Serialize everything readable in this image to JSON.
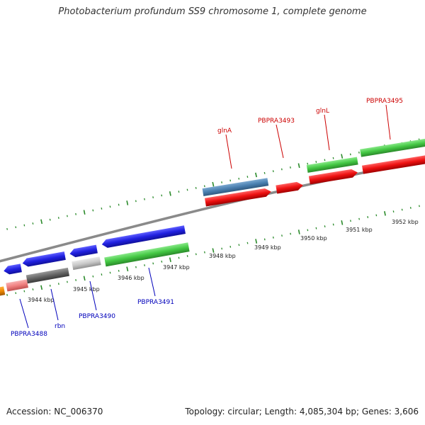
{
  "title": "Photobacterium profundum SS9 chromosome 1, complete genome",
  "footer": {
    "accession": "Accession: NC_006370",
    "summary": "Topology: circular; Length: 4,085,304 bp; Genes: 3,606"
  },
  "colors": {
    "backbone": "#8a8a8a",
    "tick": "#2a8a2a",
    "forward_label": "#cc0000",
    "reverse_label": "#0000bb",
    "blue": "#2020e0",
    "green": "#44c844",
    "red": "#ee1111",
    "steel": "#4a80b0",
    "dark_gray": "#666666",
    "light_gray": "#c8c8c8",
    "pink": "#f08080",
    "orange": "#ee8800"
  },
  "kbp_labels": [
    "3944 kbp",
    "3945 kbp",
    "3946 kbp",
    "3947 kbp",
    "3948 kbp",
    "3949 kbp",
    "3950 kbp",
    "3951 kbp",
    "3952 kbp"
  ],
  "forward_labels": [
    {
      "text": "glnA"
    },
    {
      "text": "PBPRA3493"
    },
    {
      "text": "glnL"
    },
    {
      "text": "PBPRA3495"
    }
  ],
  "reverse_labels": [
    {
      "text": "PBPRA3488"
    },
    {
      "text": "rbn"
    },
    {
      "text": "PBPRA3490"
    },
    {
      "text": "PBPRA3491"
    }
  ]
}
